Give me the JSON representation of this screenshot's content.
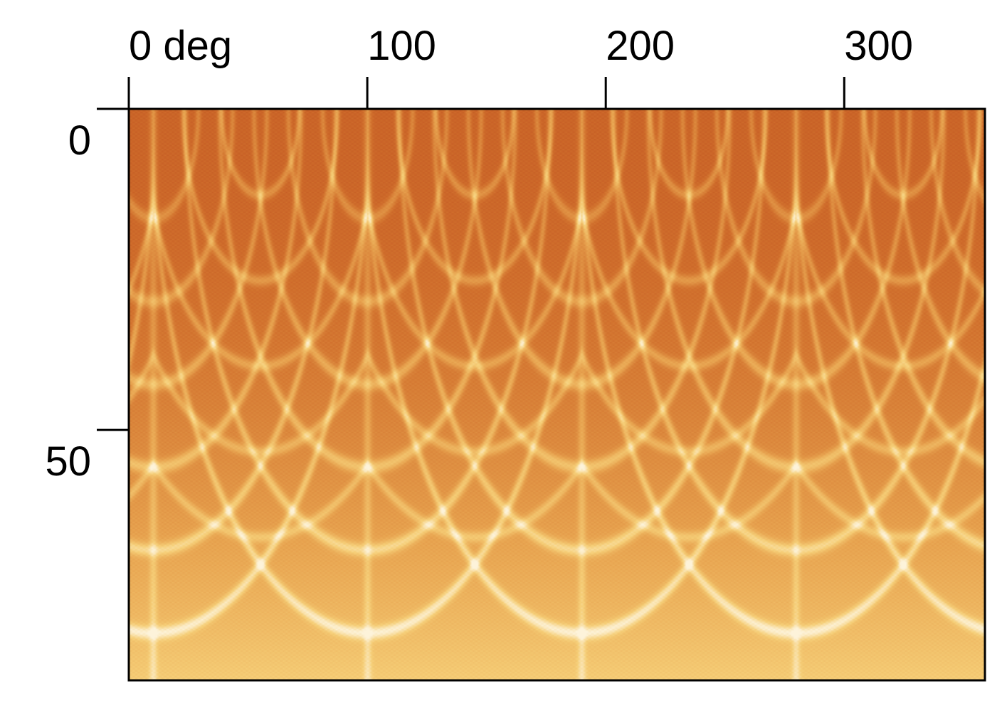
{
  "chart_data": {
    "type": "heatmap",
    "title": "",
    "xlabel": "",
    "ylabel": "",
    "x_axis_position": "top",
    "xlim": [
      0,
      359
    ],
    "ylim": [
      0,
      89
    ],
    "y_inverted": true,
    "x_ticks": [
      {
        "value": 0,
        "label": "0 deg"
      },
      {
        "value": 100,
        "label": "100"
      },
      {
        "value": 200,
        "label": "200"
      },
      {
        "value": 300,
        "label": "300"
      }
    ],
    "y_ticks": [
      {
        "value": 0,
        "label": "0"
      },
      {
        "value": 50,
        "label": "50"
      }
    ],
    "x_period": 90,
    "colormap": [
      "#b8441a",
      "#d2722e",
      "#e8a450",
      "#f6cf78",
      "#fdf3da"
    ],
    "grid": false,
    "legend": "none"
  }
}
